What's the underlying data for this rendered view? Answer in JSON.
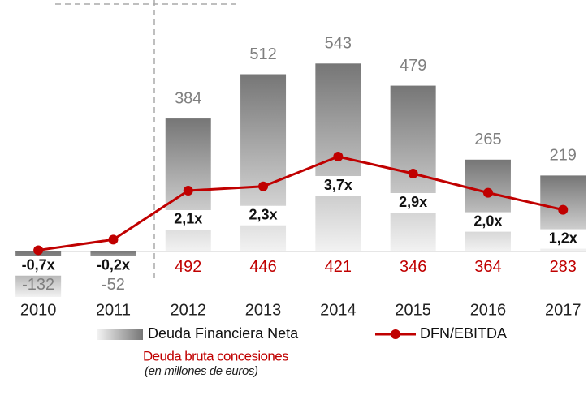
{
  "chart_data": {
    "type": "bar_line",
    "categories": [
      "2010",
      "2011",
      "2012",
      "2013",
      "2014",
      "2015",
      "2016",
      "2017"
    ],
    "series": [
      {
        "name": "Deuda Financiera Neta",
        "type": "bar",
        "color": "#7f7f7f",
        "values": [
          -132,
          -52,
          384,
          512,
          543,
          479,
          265,
          219
        ]
      },
      {
        "name": "DFN/EBITDA",
        "type": "line",
        "axis": "y2",
        "color": "#c00000",
        "values": [
          -0.7,
          -0.2,
          2.1,
          2.3,
          3.7,
          2.9,
          2.0,
          1.2
        ],
        "value_labels": [
          "-0,7x",
          "-0,2x",
          "2,1x",
          "2,3x",
          "3,7x",
          "2,9x",
          "2,0x",
          "1,2x"
        ]
      }
    ],
    "concessions": {
      "name": "Deuda bruta concesiones",
      "color": "#c00000",
      "values": [
        null,
        null,
        492,
        446,
        421,
        346,
        364,
        283
      ]
    },
    "subtitle": "(en millones de euros)",
    "ylim": [
      -200,
      600
    ],
    "y2lim": [
      -4,
      9
    ]
  }
}
